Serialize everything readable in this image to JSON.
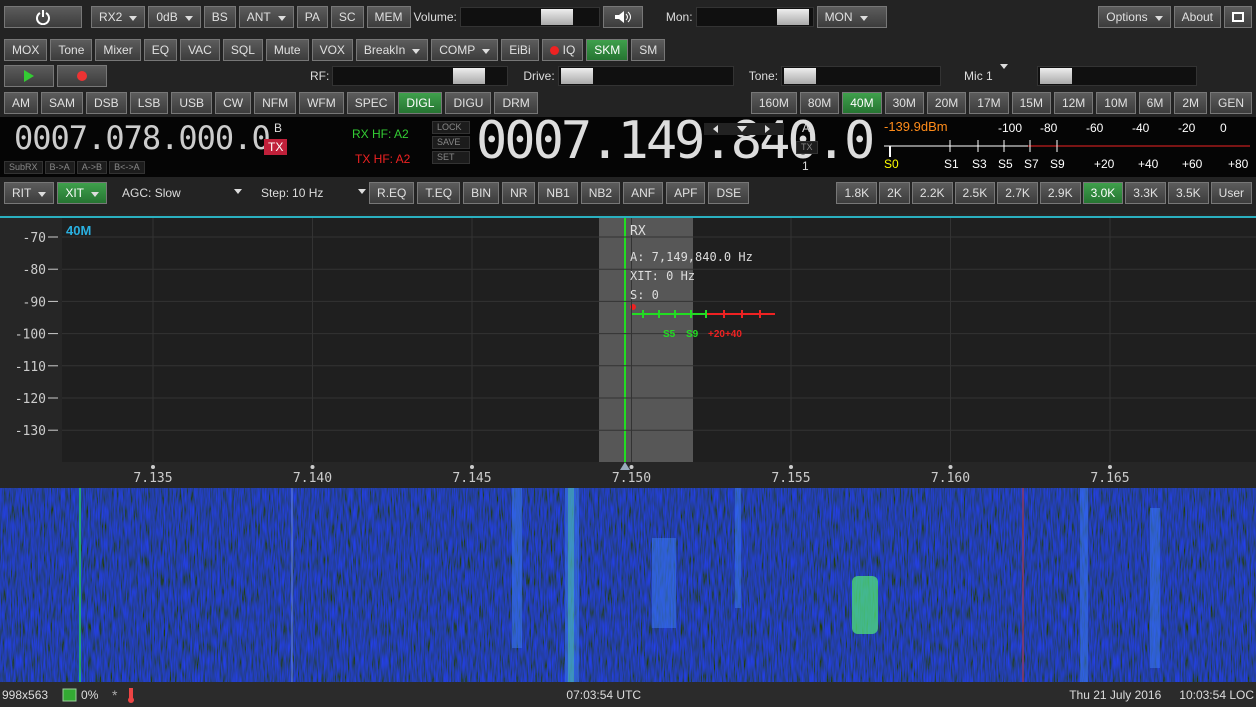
{
  "top_bar": {
    "rx2": "RX2",
    "attenuation": "0dB",
    "bs": "BS",
    "ant": "ANT",
    "pa": "PA",
    "sc": "SC",
    "mem": "MEM",
    "volume_label": "Volume:",
    "mon_label": "Mon:",
    "mon": "MON",
    "options": "Options",
    "about": "About"
  },
  "function_bar": {
    "buttons": [
      "MOX",
      "Tone",
      "Mixer",
      "EQ",
      "VAC",
      "SQL",
      "Mute",
      "VOX",
      "BreakIn",
      "COMP",
      "EiBi",
      "IQ",
      "SKM",
      "SM"
    ],
    "selected": 12
  },
  "control_bar": {
    "rf_label": "RF:",
    "drive_label": "Drive:",
    "tone_label": "Tone:",
    "mic": "Mic 1"
  },
  "mode_bar": {
    "modes": [
      "AM",
      "SAM",
      "DSB",
      "LSB",
      "USB",
      "CW",
      "NFM",
      "WFM",
      "SPEC",
      "DIGL",
      "DIGU",
      "DRM"
    ],
    "selected_mode": 9,
    "bands": [
      "160M",
      "80M",
      "40M",
      "30M",
      "20M",
      "17M",
      "15M",
      "12M",
      "10M",
      "6M",
      "2M",
      "GEN"
    ],
    "selected_band": 2
  },
  "vfo": {
    "vfo_b": {
      "frequency": "0007.078.000.0",
      "label": "B",
      "tx": "TX",
      "buttons": [
        "SubRX",
        "B->A",
        "A->B",
        "B<->A"
      ]
    },
    "rx_hf": "RX HF: A2",
    "tx_hf": "TX HF: A2",
    "lock_buttons": [
      "LOCK",
      "SAVE",
      "SET"
    ],
    "vfo_a": {
      "frequency": "0007.149.840.0",
      "label": "A",
      "tx": "TX",
      "rx": "1"
    }
  },
  "meter": {
    "reading": "-139.9dBm",
    "scale_top": [
      "-100",
      "-80",
      "-60",
      "-40",
      "-20",
      "0"
    ],
    "scale_bottom": [
      "S0",
      "S1",
      "S3",
      "S5",
      "S7",
      "S9",
      "+20",
      "+40",
      "+60",
      "+80"
    ]
  },
  "dsp_bar": {
    "rit": "RIT",
    "xit": "XIT",
    "agc": "AGC: Slow",
    "step_label": "Step:",
    "step": "10 Hz",
    "buttons": [
      "R.EQ",
      "T.EQ",
      "BIN",
      "NR",
      "NB1",
      "NB2",
      "ANF",
      "APF",
      "DSE"
    ],
    "filters": [
      "1.8K",
      "2K",
      "2.2K",
      "2.5K",
      "2.7K",
      "2.9K",
      "3.0K",
      "3.3K",
      "3.5K",
      "User"
    ],
    "selected_filter": 6
  },
  "panadapter": {
    "band": "40M",
    "y_labels": [
      "-70",
      "-80",
      "-90",
      "-100",
      "-110",
      "-120",
      "-130"
    ],
    "x_labels": [
      "7.135",
      "7.140",
      "7.145",
      "7.150",
      "7.155",
      "7.160",
      "7.165"
    ],
    "rx_label": "RX",
    "info": [
      "A: 7,149,840.0 Hz",
      "XIT: 0 Hz",
      "S: 0"
    ],
    "smeter_labels": [
      "S5",
      "S9",
      "+20+40"
    ]
  },
  "status_bar": {
    "resolution": "998x563",
    "cpu": "0%",
    "utc": "07:03:54 UTC",
    "date": "Thu 21 July 2016",
    "local": "10:03:54 LOC"
  }
}
